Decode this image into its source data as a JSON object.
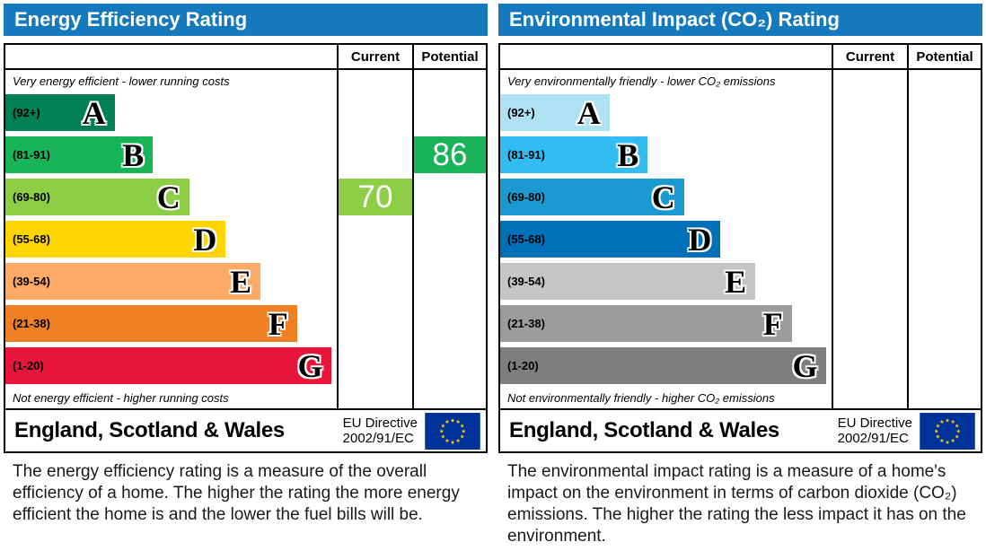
{
  "colors": {
    "header_bg": "#1479bd",
    "header_text": "#ffffff",
    "border": "#000000",
    "flag_bg": "#003399",
    "flag_star": "#ffcc00"
  },
  "panels": [
    {
      "title": "Energy Efficiency Rating",
      "columns": {
        "current": "Current",
        "potential": "Potential"
      },
      "top_note": "Very energy efficient - lower running costs",
      "bottom_note": "Not energy efficient - higher running costs",
      "bands": [
        {
          "letter": "A",
          "range": "(92+)",
          "color": "#008054",
          "width_pct": 33
        },
        {
          "letter": "B",
          "range": "(81-91)",
          "color": "#19b459",
          "width_pct": 44.5
        },
        {
          "letter": "C",
          "range": "(69-80)",
          "color": "#8dce46",
          "width_pct": 55.5
        },
        {
          "letter": "D",
          "range": "(55-68)",
          "color": "#ffd500",
          "width_pct": 66.5
        },
        {
          "letter": "E",
          "range": "(39-54)",
          "color": "#fcaa65",
          "width_pct": 77
        },
        {
          "letter": "F",
          "range": "(21-38)",
          "color": "#ef8023",
          "width_pct": 88
        },
        {
          "letter": "G",
          "range": "(1-20)",
          "color": "#e9153b",
          "width_pct": 98.5
        }
      ],
      "current": {
        "value": "70",
        "band": "C",
        "color": "#8dce46"
      },
      "potential": {
        "value": "86",
        "band": "B",
        "color": "#19b459"
      },
      "footer": {
        "region": "England, Scotland & Wales",
        "directive_line1": "EU Directive",
        "directive_line2": "2002/91/EC"
      },
      "description": "The energy efficiency rating is a measure of the overall efficiency of a home. The higher the rating the more energy efficient the home is and the lower the fuel bills will be."
    },
    {
      "title": "Environmental Impact (CO₂) Rating",
      "columns": {
        "current": "Current",
        "potential": "Potential"
      },
      "top_note": "Very environmentally friendly - lower CO₂ emissions",
      "bottom_note": "Not environmentally friendly - higher CO₂ emissions",
      "bands": [
        {
          "letter": "A",
          "range": "(92+)",
          "color": "#aee1f4",
          "width_pct": 33
        },
        {
          "letter": "B",
          "range": "(81-91)",
          "color": "#33bcf0",
          "width_pct": 44.5
        },
        {
          "letter": "C",
          "range": "(69-80)",
          "color": "#1b9ad2",
          "width_pct": 55.5
        },
        {
          "letter": "D",
          "range": "(55-68)",
          "color": "#0070b8",
          "width_pct": 66.5
        },
        {
          "letter": "E",
          "range": "(39-54)",
          "color": "#c5c5c5",
          "width_pct": 77
        },
        {
          "letter": "F",
          "range": "(21-38)",
          "color": "#9c9c9c",
          "width_pct": 88
        },
        {
          "letter": "G",
          "range": "(1-20)",
          "color": "#7e7e7e",
          "width_pct": 98.5
        }
      ],
      "current": null,
      "potential": null,
      "footer": {
        "region": "England, Scotland & Wales",
        "directive_line1": "EU Directive",
        "directive_line2": "2002/91/EC"
      },
      "description": "The environmental impact rating is a measure of a home's impact on the environment in terms of carbon dioxide (CO₂) emissions. The higher the rating the less impact it has on the environment."
    }
  ],
  "chart_data": [
    {
      "type": "bar",
      "title": "Energy Efficiency Rating",
      "orientation": "horizontal",
      "bands": [
        {
          "label": "A",
          "range": "92+",
          "color": "#008054"
        },
        {
          "label": "B",
          "range": "81-91",
          "color": "#19b459"
        },
        {
          "label": "C",
          "range": "69-80",
          "color": "#8dce46"
        },
        {
          "label": "D",
          "range": "55-68",
          "color": "#ffd500"
        },
        {
          "label": "E",
          "range": "39-54",
          "color": "#fcaa65"
        },
        {
          "label": "F",
          "range": "21-38",
          "color": "#ef8023"
        },
        {
          "label": "G",
          "range": "1-20",
          "color": "#e9153b"
        }
      ],
      "current": {
        "value": 70,
        "band": "C"
      },
      "potential": {
        "value": 86,
        "band": "B"
      },
      "region": "England, Scotland & Wales",
      "directive": "EU Directive 2002/91/EC"
    },
    {
      "type": "bar",
      "title": "Environmental Impact (CO₂) Rating",
      "orientation": "horizontal",
      "bands": [
        {
          "label": "A",
          "range": "92+",
          "color": "#aee1f4"
        },
        {
          "label": "B",
          "range": "81-91",
          "color": "#33bcf0"
        },
        {
          "label": "C",
          "range": "69-80",
          "color": "#1b9ad2"
        },
        {
          "label": "D",
          "range": "55-68",
          "color": "#0070b8"
        },
        {
          "label": "E",
          "range": "39-54",
          "color": "#c5c5c5"
        },
        {
          "label": "F",
          "range": "21-38",
          "color": "#9c9c9c"
        },
        {
          "label": "G",
          "range": "1-20",
          "color": "#7e7e7e"
        }
      ],
      "current": null,
      "potential": null,
      "region": "England, Scotland & Wales",
      "directive": "EU Directive 2002/91/EC"
    }
  ]
}
